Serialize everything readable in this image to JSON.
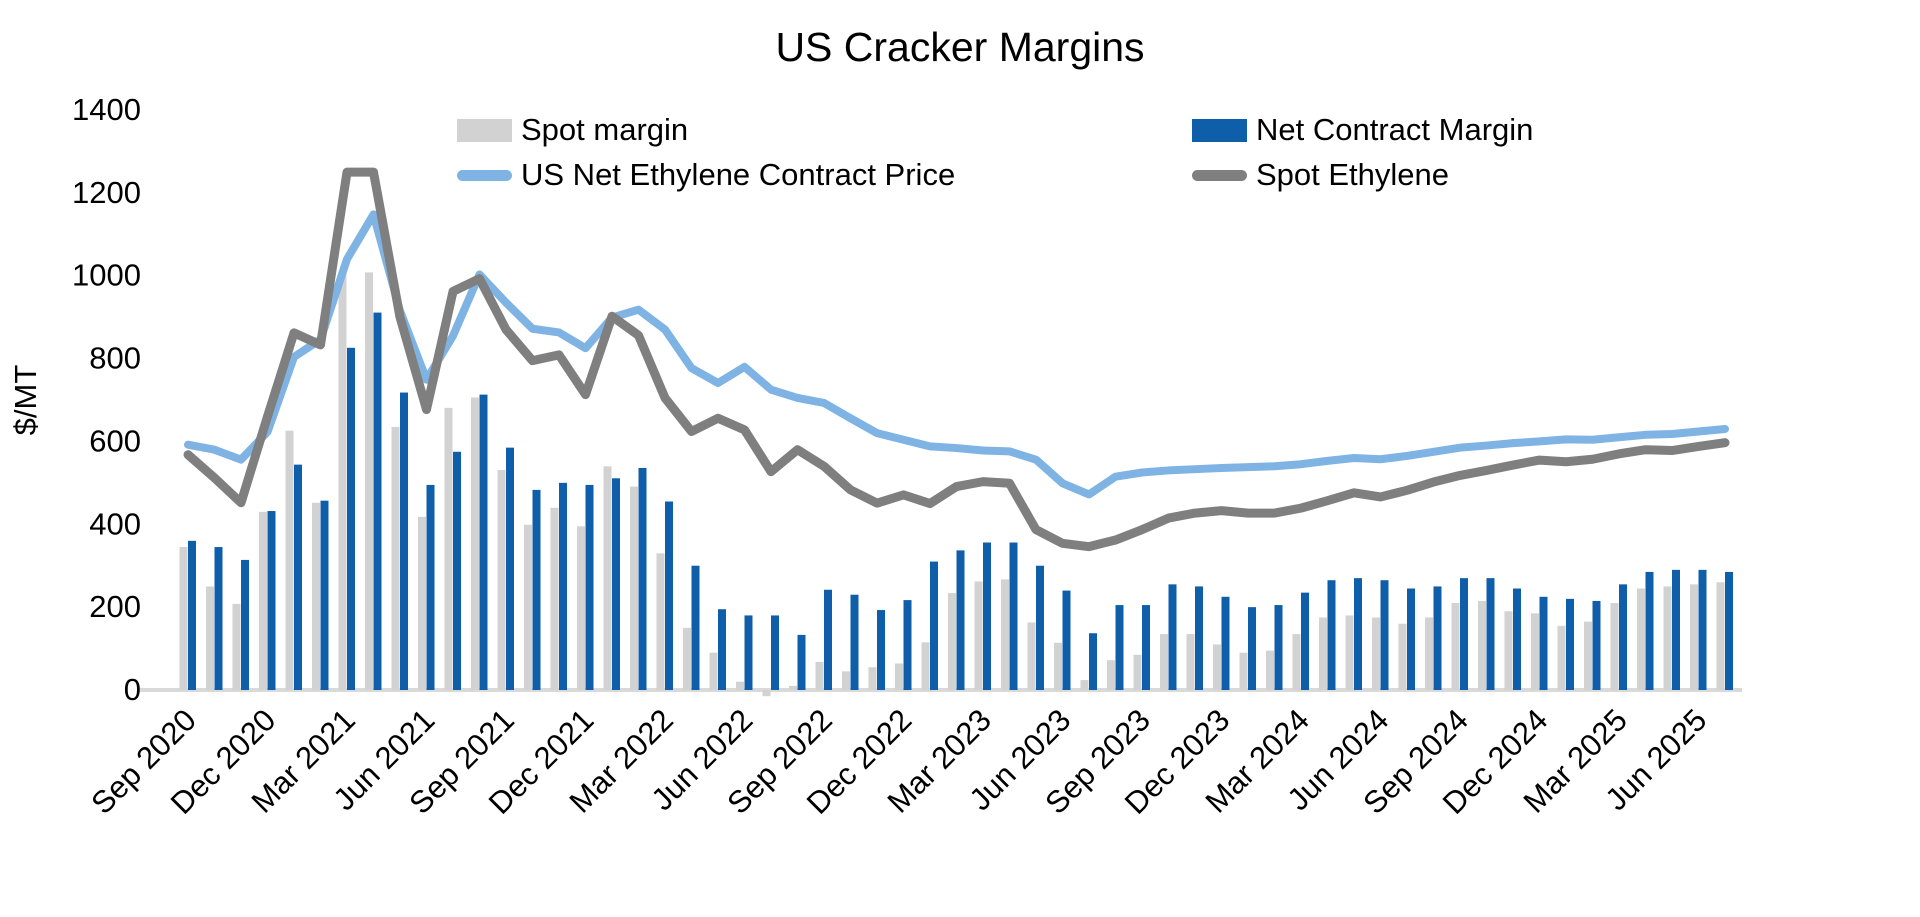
{
  "title": "US Cracker Margins",
  "y_axis": {
    "label": "$/MT",
    "min": 0,
    "max": 1400,
    "tick_step": 200,
    "tick_labels": [
      "0",
      "200",
      "400",
      "600",
      "800",
      "1000",
      "1200",
      "1400"
    ]
  },
  "x_axis": {
    "tick_every_months": 3,
    "tick_labels": [
      "Sep 2020",
      "Dec 2020",
      "Mar 2021",
      "Jun 2021",
      "Sep 2021",
      "Dec 2021",
      "Mar 2022",
      "Jun 2022",
      "Sep 2022",
      "Dec 2022",
      "Mar 2023",
      "Jun 2023",
      "Sep 2023",
      "Dec 2023",
      "Mar 2024",
      "Jun 2024",
      "Sep 2024",
      "Dec 2024",
      "Mar 2025",
      "Jun 2025"
    ]
  },
  "legend": [
    {
      "label": "Spot margin",
      "type": "bar",
      "color": "#D2D2D2"
    },
    {
      "label": "Net Contract Margin",
      "type": "bar",
      "color": "#0F5EA9"
    },
    {
      "label": "US Net Ethylene Contract Price",
      "type": "line",
      "color": "#7FB3E3"
    },
    {
      "label": "Spot Ethylene",
      "type": "line",
      "color": "#7F7F7F"
    }
  ],
  "colors": {
    "spot_margin_bar": "#D2D2D2",
    "net_contract_margin_bar": "#0F5EA9",
    "contract_price_line": "#7FB3E3",
    "spot_ethylene_line": "#7F7F7F",
    "axis_line": "#D9D9D9",
    "text": "#000000"
  },
  "chart_data": {
    "type": "combo",
    "title": "US Cracker Margins",
    "xlabel": "",
    "ylabel": "$/MT",
    "ylim": [
      0,
      1400
    ],
    "grid": false,
    "legend_position": "top",
    "categories": [
      "Sep 2020",
      "Oct 2020",
      "Nov 2020",
      "Dec 2020",
      "Jan 2021",
      "Feb 2021",
      "Mar 2021",
      "Apr 2021",
      "May 2021",
      "Jun 2021",
      "Jul 2021",
      "Aug 2021",
      "Sep 2021",
      "Oct 2021",
      "Nov 2021",
      "Dec 2021",
      "Jan 2022",
      "Feb 2022",
      "Mar 2022",
      "Apr 2022",
      "May 2022",
      "Jun 2022",
      "Jul 2022",
      "Aug 2022",
      "Sep 2022",
      "Oct 2022",
      "Nov 2022",
      "Dec 2022",
      "Jan 2023",
      "Feb 2023",
      "Mar 2023",
      "Apr 2023",
      "May 2023",
      "Jun 2023",
      "Jul 2023",
      "Aug 2023",
      "Sep 2023",
      "Oct 2023",
      "Nov 2023",
      "Dec 2023",
      "Jan 2024",
      "Feb 2024",
      "Mar 2024",
      "Apr 2024",
      "May 2024",
      "Jun 2024",
      "Jul 2024",
      "Aug 2024",
      "Sep 2024",
      "Oct 2024",
      "Nov 2024",
      "Dec 2024",
      "Jan 2025",
      "Feb 2025",
      "Mar 2025",
      "Apr 2025",
      "May 2025",
      "Jun 2025",
      "Jul 2025"
    ],
    "series": [
      {
        "name": "Spot margin",
        "type": "bar",
        "color": "#D2D2D2",
        "values": [
          345,
          250,
          208,
          430,
          626,
          452,
          1008,
          1008,
          635,
          418,
          681,
          706,
          531,
          399,
          440,
          395,
          540,
          491,
          330,
          150,
          90,
          20,
          -15,
          10,
          68,
          45,
          55,
          64,
          115,
          234,
          262,
          267,
          163,
          114,
          24,
          72,
          85,
          135,
          135,
          110,
          90,
          95,
          135,
          175,
          180,
          175,
          160,
          175,
          210,
          215,
          190,
          185,
          155,
          165,
          210,
          245,
          250,
          255,
          260
        ]
      },
      {
        "name": "Net Contract Margin",
        "type": "bar",
        "color": "#0F5EA9",
        "values": [
          360,
          345,
          314,
          432,
          544,
          457,
          826,
          911,
          718,
          495,
          575,
          713,
          585,
          483,
          500,
          495,
          511,
          536,
          455,
          300,
          195,
          180,
          180,
          133,
          242,
          230,
          193,
          217,
          310,
          337,
          356,
          356,
          300,
          240,
          137,
          205,
          205,
          255,
          250,
          225,
          200,
          205,
          235,
          265,
          270,
          265,
          245,
          250,
          270,
          270,
          245,
          225,
          220,
          215,
          255,
          285,
          290,
          290,
          285
        ]
      },
      {
        "name": "US Net Ethylene Contract Price",
        "type": "line",
        "color": "#7FB3E3",
        "values": [
          592,
          580,
          556,
          623,
          804,
          846,
          1040,
          1148,
          915,
          749,
          855,
          1003,
          935,
          872,
          863,
          825,
          899,
          918,
          870,
          777,
          741,
          780,
          725,
          705,
          693,
          656,
          620,
          604,
          588,
          584,
          578,
          576,
          556,
          499,
          472,
          515,
          525,
          530,
          533,
          536,
          538,
          540,
          545,
          553,
          560,
          557,
          565,
          575,
          585,
          590,
          596,
          600,
          605,
          604,
          610,
          616,
          618,
          624,
          630
        ]
      },
      {
        "name": "Spot Ethylene",
        "type": "line",
        "color": "#7F7F7F",
        "values": [
          568,
          512,
          452,
          660,
          862,
          833,
          1250,
          1250,
          900,
          677,
          962,
          993,
          870,
          795,
          809,
          713,
          902,
          856,
          705,
          624,
          656,
          628,
          527,
          580,
          540,
          483,
          451,
          471,
          450,
          491,
          503,
          499,
          387,
          354,
          346,
          362,
          387,
          415,
          427,
          433,
          427,
          427,
          439,
          457,
          476,
          466,
          482,
          502,
          518,
          530,
          543,
          555,
          551,
          557,
          570,
          580,
          578,
          588,
          597
        ]
      }
    ]
  }
}
